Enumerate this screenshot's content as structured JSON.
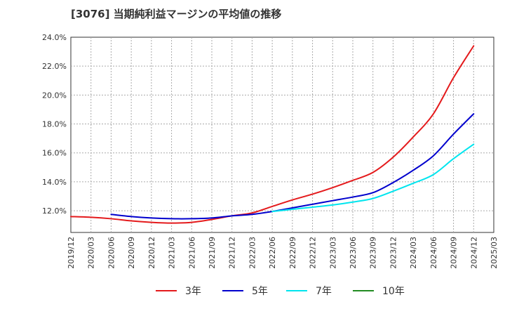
{
  "chart_data": {
    "type": "line",
    "title": "[3076]  当期純利益マージンの平均値の推移",
    "xlabel": "",
    "ylabel": "",
    "ylim": [
      10.5,
      24.0
    ],
    "yticks": [
      "24.0%",
      "22.0%",
      "20.0%",
      "18.0%",
      "16.0%",
      "14.0%",
      "12.0%"
    ],
    "yticks_values": [
      24,
      22,
      20,
      18,
      16,
      14,
      12
    ],
    "xticks": [
      "2019/12",
      "2020/03",
      "2020/06",
      "2020/09",
      "2020/12",
      "2021/03",
      "2021/06",
      "2021/09",
      "2021/12",
      "2022/03",
      "2022/06",
      "2022/09",
      "2022/12",
      "2023/03",
      "2023/06",
      "2023/09",
      "2023/12",
      "2024/03",
      "2024/06",
      "2024/09",
      "2024/12",
      "2025/03"
    ],
    "grid": true,
    "legend_position": "bottom",
    "series": [
      {
        "name": "3年",
        "color": "#e41a1c",
        "points": [
          [
            "2019/12",
            11.6
          ],
          [
            "2020/03",
            11.55
          ],
          [
            "2020/06",
            11.45
          ],
          [
            "2020/09",
            11.3
          ],
          [
            "2020/12",
            11.2
          ],
          [
            "2021/03",
            11.15
          ],
          [
            "2021/06",
            11.2
          ],
          [
            "2021/09",
            11.4
          ],
          [
            "2021/12",
            11.65
          ],
          [
            "2022/03",
            11.85
          ],
          [
            "2022/06",
            12.3
          ],
          [
            "2022/09",
            12.75
          ],
          [
            "2022/12",
            13.15
          ],
          [
            "2023/03",
            13.6
          ],
          [
            "2023/06",
            14.1
          ],
          [
            "2023/09",
            14.65
          ],
          [
            "2023/12",
            15.7
          ],
          [
            "2024/03",
            17.1
          ],
          [
            "2024/06",
            18.7
          ],
          [
            "2024/09",
            21.2
          ],
          [
            "2024/12",
            23.4
          ]
        ]
      },
      {
        "name": "5年",
        "color": "#0000cd",
        "points": [
          [
            "2020/06",
            11.75
          ],
          [
            "2020/09",
            11.6
          ],
          [
            "2020/12",
            11.5
          ],
          [
            "2021/03",
            11.45
          ],
          [
            "2021/06",
            11.45
          ],
          [
            "2021/09",
            11.5
          ],
          [
            "2021/12",
            11.65
          ],
          [
            "2022/03",
            11.75
          ],
          [
            "2022/06",
            11.95
          ],
          [
            "2022/09",
            12.2
          ],
          [
            "2022/12",
            12.45
          ],
          [
            "2023/03",
            12.7
          ],
          [
            "2023/06",
            12.95
          ],
          [
            "2023/09",
            13.25
          ],
          [
            "2023/12",
            13.95
          ],
          [
            "2024/03",
            14.8
          ],
          [
            "2024/06",
            15.8
          ],
          [
            "2024/09",
            17.3
          ],
          [
            "2024/12",
            18.7
          ]
        ]
      },
      {
        "name": "7年",
        "color": "#00e5ee",
        "points": [
          [
            "2022/06",
            11.95
          ],
          [
            "2022/09",
            12.1
          ],
          [
            "2022/12",
            12.25
          ],
          [
            "2023/03",
            12.4
          ],
          [
            "2023/06",
            12.6
          ],
          [
            "2023/09",
            12.85
          ],
          [
            "2023/12",
            13.35
          ],
          [
            "2024/03",
            13.9
          ],
          [
            "2024/06",
            14.5
          ],
          [
            "2024/09",
            15.6
          ],
          [
            "2024/12",
            16.6
          ]
        ]
      },
      {
        "name": "10年",
        "color": "#228b22",
        "points": []
      }
    ]
  }
}
